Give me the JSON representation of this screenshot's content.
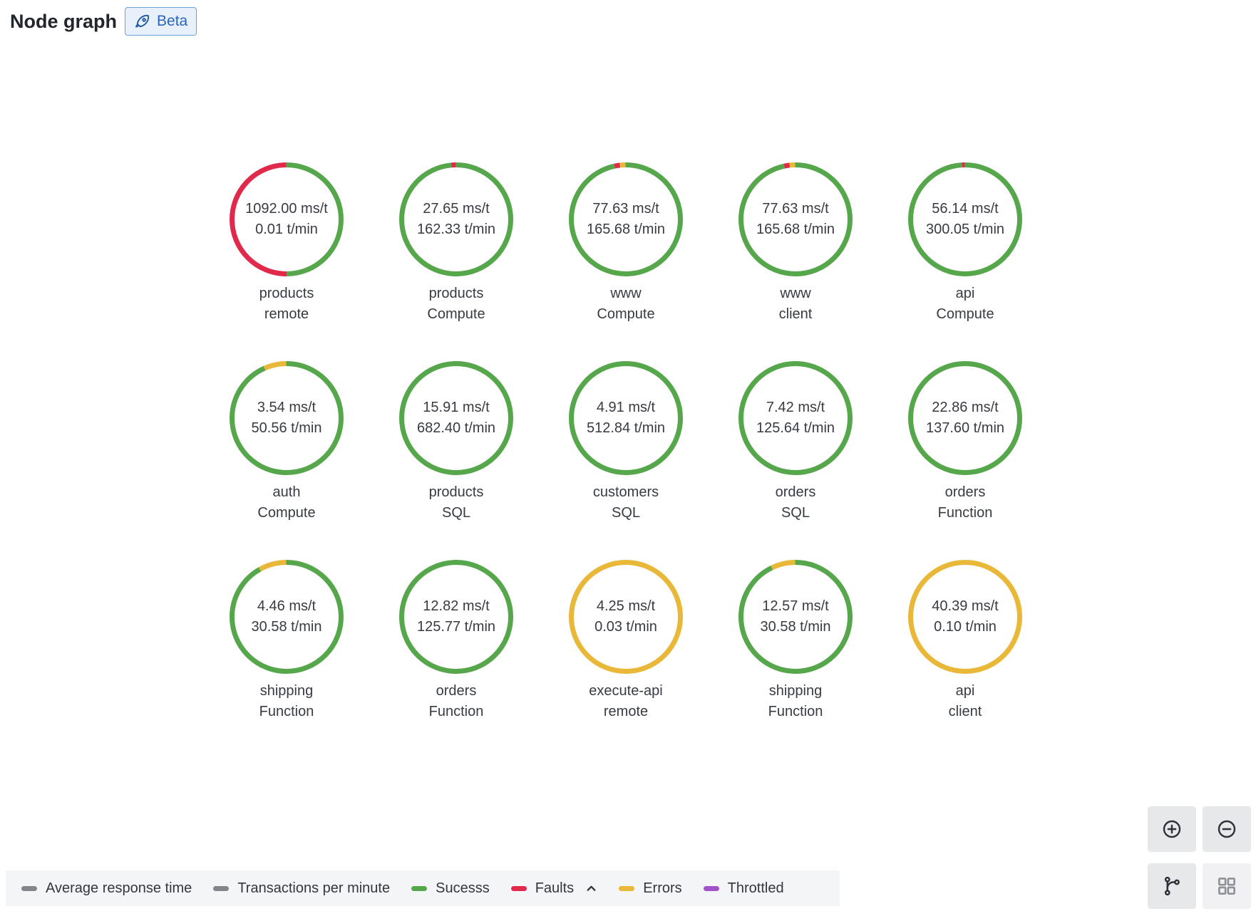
{
  "header": {
    "title": "Node graph",
    "beta_label": "Beta",
    "beta_icon": "rocket-icon"
  },
  "colors": {
    "success": "#56a64b",
    "fault": "#e0294b",
    "error": "#eab839",
    "throttled": "#a352cc",
    "metric": "#84858a"
  },
  "nodes": [
    {
      "row": 0,
      "col": 0,
      "mainstat": "1092.00 ms/t",
      "secondarystat": "0.01 t/min",
      "title": "products",
      "subtitle": "remote",
      "arcs": [
        {
          "color": "success",
          "pct": 50
        },
        {
          "color": "fault",
          "pct": 50
        }
      ]
    },
    {
      "row": 0,
      "col": 1,
      "mainstat": "27.65 ms/t",
      "secondarystat": "162.33 t/min",
      "title": "products",
      "subtitle": "Compute",
      "arcs": [
        {
          "color": "success",
          "pct": 98.7
        },
        {
          "color": "fault",
          "pct": 1.3
        }
      ]
    },
    {
      "row": 0,
      "col": 2,
      "mainstat": "77.63 ms/t",
      "secondarystat": "165.68 t/min",
      "title": "www",
      "subtitle": "Compute",
      "arcs": [
        {
          "color": "success",
          "pct": 96.8
        },
        {
          "color": "fault",
          "pct": 1.6
        },
        {
          "color": "error",
          "pct": 1.6
        }
      ]
    },
    {
      "row": 0,
      "col": 3,
      "mainstat": "77.63 ms/t",
      "secondarystat": "165.68 t/min",
      "title": "www",
      "subtitle": "client",
      "arcs": [
        {
          "color": "success",
          "pct": 96.8
        },
        {
          "color": "fault",
          "pct": 1.6
        },
        {
          "color": "error",
          "pct": 1.6
        }
      ]
    },
    {
      "row": 0,
      "col": 4,
      "mainstat": "56.14 ms/t",
      "secondarystat": "300.05 t/min",
      "title": "api",
      "subtitle": "Compute",
      "arcs": [
        {
          "color": "success",
          "pct": 99.2
        },
        {
          "color": "fault",
          "pct": 0.8
        }
      ]
    },
    {
      "row": 1,
      "col": 0,
      "mainstat": "3.54 ms/t",
      "secondarystat": "50.56 t/min",
      "title": "auth",
      "subtitle": "Compute",
      "arcs": [
        {
          "color": "success",
          "pct": 93.5
        },
        {
          "color": "error",
          "pct": 6.5
        }
      ]
    },
    {
      "row": 1,
      "col": 1,
      "mainstat": "15.91 ms/t",
      "secondarystat": "682.40 t/min",
      "title": "products",
      "subtitle": "SQL",
      "arcs": [
        {
          "color": "success",
          "pct": 100
        }
      ]
    },
    {
      "row": 1,
      "col": 2,
      "mainstat": "4.91 ms/t",
      "secondarystat": "512.84 t/min",
      "title": "customers",
      "subtitle": "SQL",
      "arcs": [
        {
          "color": "success",
          "pct": 100
        }
      ]
    },
    {
      "row": 1,
      "col": 3,
      "mainstat": "7.42 ms/t",
      "secondarystat": "125.64 t/min",
      "title": "orders",
      "subtitle": "SQL",
      "arcs": [
        {
          "color": "success",
          "pct": 100
        }
      ]
    },
    {
      "row": 1,
      "col": 4,
      "mainstat": "22.86 ms/t",
      "secondarystat": "137.60 t/min",
      "title": "orders",
      "subtitle": "Function",
      "arcs": [
        {
          "color": "success",
          "pct": 100
        }
      ]
    },
    {
      "row": 2,
      "col": 0,
      "mainstat": "4.46 ms/t",
      "secondarystat": "30.58 t/min",
      "title": "shipping",
      "subtitle": "Function",
      "arcs": [
        {
          "color": "success",
          "pct": 92
        },
        {
          "color": "error",
          "pct": 8
        }
      ]
    },
    {
      "row": 2,
      "col": 1,
      "mainstat": "12.82 ms/t",
      "secondarystat": "125.77 t/min",
      "title": "orders",
      "subtitle": "Function",
      "arcs": [
        {
          "color": "success",
          "pct": 100
        }
      ]
    },
    {
      "row": 2,
      "col": 2,
      "mainstat": "4.25 ms/t",
      "secondarystat": "0.03 t/min",
      "title": "execute-api",
      "subtitle": "remote",
      "arcs": [
        {
          "color": "error",
          "pct": 100
        }
      ]
    },
    {
      "row": 2,
      "col": 3,
      "mainstat": "12.57 ms/t",
      "secondarystat": "30.58 t/min",
      "title": "shipping",
      "subtitle": "Function",
      "arcs": [
        {
          "color": "success",
          "pct": 93
        },
        {
          "color": "error",
          "pct": 7
        }
      ]
    },
    {
      "row": 2,
      "col": 4,
      "mainstat": "40.39 ms/t",
      "secondarystat": "0.10 t/min",
      "title": "api",
      "subtitle": "client",
      "arcs": [
        {
          "color": "error",
          "pct": 100
        }
      ]
    }
  ],
  "legend": {
    "items": [
      {
        "label": "Average response time",
        "color": "metric",
        "caret": false
      },
      {
        "label": "Transactions per minute",
        "color": "metric",
        "caret": false
      },
      {
        "label": "Sucesss",
        "color": "success",
        "caret": false
      },
      {
        "label": "Faults",
        "color": "fault",
        "caret": true
      },
      {
        "label": "Errors",
        "color": "error",
        "caret": false
      },
      {
        "label": "Throttled",
        "color": "throttled",
        "caret": false
      }
    ],
    "caret_icon": "chevron-up-icon"
  },
  "controls": {
    "zoom_in_icon": "circle-plus-icon",
    "zoom_out_icon": "circle-minus-icon",
    "layout_default_icon": "hierarchy-branch-icon",
    "layout_grid_icon": "grid-layout-icon"
  }
}
